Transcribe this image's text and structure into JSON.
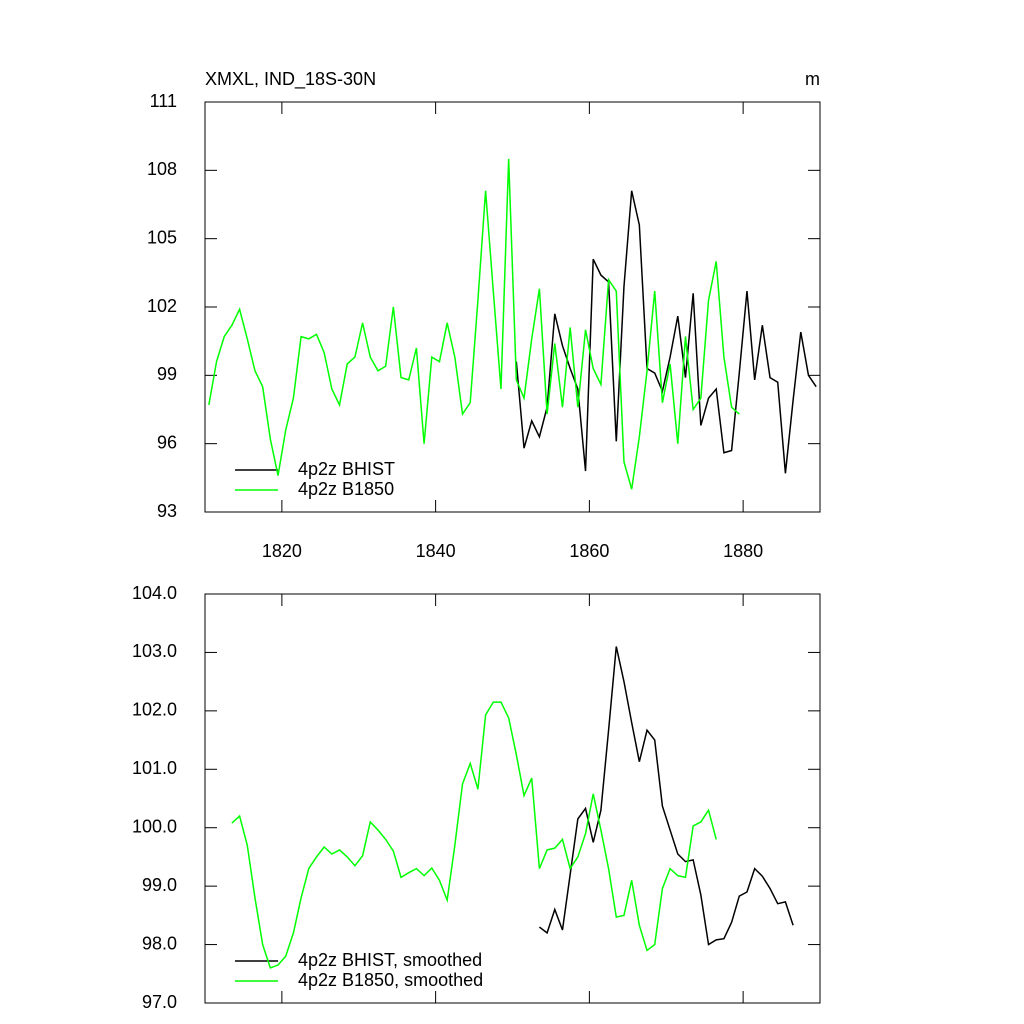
{
  "chart_data": [
    {
      "type": "line",
      "title": "XMXL, IND_18S-30N",
      "units": "m",
      "xlim": [
        1810,
        1890
      ],
      "xticks": [
        1820,
        1840,
        1860,
        1880
      ],
      "xtick_labels": true,
      "ylim": [
        93,
        111
      ],
      "yticks": [
        93,
        96,
        99,
        102,
        105,
        108,
        111
      ],
      "series": [
        {
          "name": "4p2z BHIST",
          "color": "#000000",
          "x": [
            1850.5,
            1851.5,
            1852.5,
            1853.5,
            1854.5,
            1855.5,
            1856.5,
            1857.5,
            1858.5,
            1859.5,
            1860.5,
            1861.5,
            1862.5,
            1863.5,
            1864.5,
            1865.5,
            1866.5,
            1867.5,
            1868.5,
            1869.5,
            1870.5,
            1871.5,
            1872.5,
            1873.5,
            1874.5,
            1875.5,
            1876.5,
            1877.5,
            1878.5,
            1879.5,
            1880.5,
            1881.5,
            1882.5,
            1883.5,
            1884.5,
            1885.5,
            1886.5,
            1887.5,
            1888.5,
            1889.5
          ],
          "values": [
            99.6,
            95.8,
            97.0,
            96.3,
            97.6,
            101.7,
            100.3,
            99.3,
            98.4,
            94.8,
            104.1,
            103.4,
            103.1,
            96.1,
            102.9,
            107.1,
            105.6,
            99.3,
            99.1,
            98.3,
            99.8,
            101.6,
            98.9,
            102.6,
            96.8,
            98.0,
            98.4,
            95.6,
            95.7,
            99.1,
            102.7,
            98.8,
            101.2,
            98.9,
            98.7,
            94.7,
            97.9,
            100.9,
            99.0,
            98.5
          ]
        },
        {
          "name": "4p2z B1850",
          "color": "#00ff00",
          "x": [
            1810.5,
            1811.5,
            1812.5,
            1813.5,
            1814.5,
            1815.5,
            1816.5,
            1817.5,
            1818.5,
            1819.5,
            1820.5,
            1821.5,
            1822.5,
            1823.5,
            1824.5,
            1825.5,
            1826.5,
            1827.5,
            1828.5,
            1829.5,
            1830.5,
            1831.5,
            1832.5,
            1833.5,
            1834.5,
            1835.5,
            1836.5,
            1837.5,
            1838.5,
            1839.5,
            1840.5,
            1841.5,
            1842.5,
            1843.5,
            1844.5,
            1845.5,
            1846.5,
            1847.5,
            1848.5,
            1849.5,
            1850.5,
            1851.5,
            1852.5,
            1853.5,
            1854.5,
            1855.5,
            1856.5,
            1857.5,
            1858.5,
            1859.5,
            1860.5,
            1861.5,
            1862.5,
            1863.5,
            1864.5,
            1865.5,
            1866.5,
            1867.5,
            1868.5,
            1869.5,
            1870.5,
            1871.5,
            1872.5,
            1873.5,
            1874.5,
            1875.5,
            1876.5,
            1877.5,
            1878.5,
            1879.5
          ],
          "values": [
            97.7,
            99.6,
            100.7,
            101.2,
            101.9,
            100.6,
            99.2,
            98.5,
            96.2,
            94.6,
            96.6,
            98.0,
            100.7,
            100.6,
            100.8,
            100.0,
            98.4,
            97.7,
            99.5,
            99.8,
            101.3,
            99.8,
            99.2,
            99.4,
            102.0,
            98.9,
            98.8,
            100.2,
            96.0,
            99.8,
            99.6,
            101.3,
            99.8,
            97.3,
            97.8,
            102.3,
            107.1,
            102.7,
            98.4,
            108.5,
            98.8,
            98.0,
            100.6,
            102.8,
            97.3,
            100.4,
            97.6,
            101.1,
            97.6,
            101.0,
            99.3,
            98.6,
            103.2,
            102.7,
            95.2,
            94.0,
            96.3,
            99.2,
            102.7,
            97.8,
            99.5,
            96.0,
            100.7,
            97.5,
            98.0,
            102.3,
            104.0,
            99.8,
            97.6,
            97.3
          ]
        }
      ]
    },
    {
      "type": "line",
      "xlim": [
        1810,
        1890
      ],
      "xticks": [
        1820,
        1840,
        1860,
        1880
      ],
      "xtick_labels": false,
      "ylim": [
        97,
        104
      ],
      "yticks": [
        {
          "value": 97,
          "label": "97.0"
        },
        {
          "value": 98,
          "label": "98.0"
        },
        {
          "value": 99,
          "label": "99.0"
        },
        {
          "value": 100,
          "label": "100.0"
        },
        {
          "value": 101,
          "label": "101.0"
        },
        {
          "value": 102,
          "label": "102.0"
        },
        {
          "value": 103,
          "label": "103.0"
        },
        {
          "value": 104,
          "label": "104.0"
        }
      ],
      "series": [
        {
          "name": "4p2z BHIST, smoothed",
          "color": "#000000",
          "x": [
            1853.5,
            1854.5,
            1855.5,
            1856.5,
            1857.5,
            1858.5,
            1859.5,
            1860.5,
            1861.5,
            1862.5,
            1863.5,
            1864.5,
            1865.5,
            1866.5,
            1867.5,
            1868.5,
            1869.5,
            1870.5,
            1871.5,
            1872.5,
            1873.5,
            1874.5,
            1875.5,
            1876.5,
            1877.5,
            1878.5,
            1879.5,
            1880.5,
            1881.5,
            1882.5,
            1883.5,
            1884.5,
            1885.5,
            1886.5
          ],
          "values": [
            98.3,
            98.2,
            98.6,
            98.25,
            99.2,
            100.15,
            100.33,
            99.75,
            100.3,
            101.67,
            103.1,
            102.5,
            101.8,
            101.13,
            101.67,
            101.5,
            100.37,
            99.96,
            99.55,
            99.42,
            99.45,
            98.85,
            98.0,
            98.08,
            98.1,
            98.38,
            98.83,
            98.9,
            99.3,
            99.17,
            98.96,
            98.7,
            98.73,
            98.33
          ]
        },
        {
          "name": "4p2z B1850, smoothed",
          "color": "#00ff00",
          "x": [
            1813.5,
            1814.5,
            1815.5,
            1816.5,
            1817.5,
            1818.5,
            1819.5,
            1820.5,
            1821.5,
            1822.5,
            1823.5,
            1824.5,
            1825.5,
            1826.5,
            1827.5,
            1828.5,
            1829.5,
            1830.5,
            1831.5,
            1832.5,
            1833.5,
            1834.5,
            1835.5,
            1836.5,
            1837.5,
            1838.5,
            1839.5,
            1840.5,
            1841.5,
            1842.5,
            1843.5,
            1844.5,
            1845.5,
            1846.5,
            1847.5,
            1848.5,
            1849.5,
            1850.5,
            1851.5,
            1852.5,
            1853.5,
            1854.5,
            1855.5,
            1856.5,
            1857.5,
            1858.5,
            1859.5,
            1860.5,
            1861.5,
            1862.5,
            1863.5,
            1864.5,
            1865.5,
            1866.5,
            1867.5,
            1868.5,
            1869.5,
            1870.5,
            1871.5,
            1872.5,
            1873.5,
            1874.5,
            1875.5,
            1876.5
          ],
          "values": [
            100.08,
            100.2,
            99.7,
            98.8,
            98.0,
            97.6,
            97.65,
            97.8,
            98.2,
            98.8,
            99.3,
            99.5,
            99.67,
            99.55,
            99.62,
            99.5,
            99.35,
            99.52,
            100.1,
            99.96,
            99.8,
            99.6,
            99.15,
            99.23,
            99.3,
            99.18,
            99.31,
            99.1,
            98.76,
            99.7,
            100.75,
            101.1,
            100.66,
            101.93,
            102.15,
            102.15,
            101.88,
            101.25,
            100.55,
            100.85,
            99.3,
            99.62,
            99.65,
            99.8,
            99.3,
            99.5,
            99.9,
            100.58,
            99.96,
            99.3,
            98.47,
            98.5,
            99.1,
            98.33,
            97.9,
            98.0,
            98.96,
            99.3,
            99.18,
            99.15,
            100.03,
            100.1,
            100.3,
            99.8
          ]
        }
      ]
    }
  ]
}
